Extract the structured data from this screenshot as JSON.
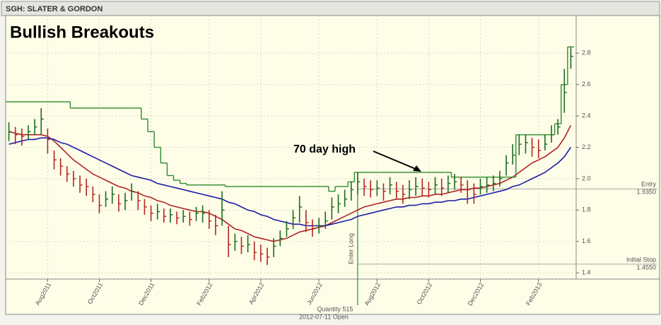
{
  "header": {
    "ticker": "SGH: SLATER & GORDON"
  },
  "chart_data": {
    "type": "ohlc",
    "title": "Bullish Breakouts",
    "categories": [
      null,
      null,
      null,
      null,
      null,
      null,
      "Aug2011",
      null,
      null,
      null,
      null,
      null,
      null,
      null,
      "Oct2011",
      null,
      null,
      null,
      null,
      null,
      null,
      null,
      "Dec2011",
      null,
      null,
      null,
      null,
      null,
      null,
      null,
      null,
      "Feb2012",
      null,
      null,
      null,
      null,
      null,
      null,
      null,
      "Apr2012",
      null,
      null,
      null,
      null,
      null,
      null,
      null,
      null,
      "Jun2012",
      null,
      null,
      null,
      null,
      null,
      null,
      null,
      null,
      "Aug2012",
      null,
      null,
      null,
      null,
      null,
      null,
      null,
      "Oct2012",
      null,
      null,
      null,
      null,
      null,
      null,
      null,
      "Dec2012",
      null,
      null,
      null,
      null,
      null,
      null,
      null,
      null,
      "Feb2013",
      null,
      null,
      null,
      null,
      null
    ],
    "high": [
      2.36,
      2.33,
      2.32,
      2.34,
      2.38,
      2.45,
      2.32,
      2.18,
      2.13,
      2.08,
      2.05,
      2.02,
      2.0,
      1.95,
      1.9,
      1.92,
      1.95,
      1.9,
      1.91,
      1.97,
      1.92,
      1.87,
      1.83,
      1.84,
      1.81,
      1.81,
      1.79,
      1.8,
      1.79,
      1.82,
      1.83,
      1.8,
      1.77,
      1.92,
      1.7,
      1.65,
      1.63,
      1.64,
      1.6,
      1.58,
      1.56,
      1.62,
      1.67,
      1.73,
      1.8,
      1.89,
      1.8,
      1.74,
      1.75,
      1.79,
      1.88,
      1.9,
      1.93,
      1.98,
      2.04,
      2.0,
      1.99,
      1.99,
      1.97,
      2.01,
      1.98,
      1.96,
      1.99,
      2.01,
      2.0,
      1.98,
      2.01,
      2.0,
      2.02,
      2.03,
      2.01,
      1.99,
      1.97,
      2.0,
      2.01,
      2.02,
      2.05,
      2.15,
      2.22,
      2.28,
      2.28,
      2.26,
      2.25,
      2.28,
      2.34,
      2.38,
      2.7,
      2.84
    ],
    "low": [
      2.24,
      2.22,
      2.21,
      2.25,
      2.28,
      2.28,
      2.16,
      2.06,
      2.02,
      1.98,
      1.95,
      1.91,
      1.89,
      1.85,
      1.78,
      1.82,
      1.84,
      1.79,
      1.8,
      1.86,
      1.8,
      1.77,
      1.73,
      1.74,
      1.72,
      1.72,
      1.71,
      1.72,
      1.7,
      1.73,
      1.72,
      1.68,
      1.64,
      1.7,
      1.5,
      1.54,
      1.52,
      1.53,
      1.48,
      1.47,
      1.45,
      1.5,
      1.57,
      1.63,
      1.68,
      1.72,
      1.66,
      1.63,
      1.65,
      1.68,
      1.74,
      1.78,
      1.82,
      1.86,
      1.9,
      1.89,
      1.88,
      1.89,
      1.86,
      1.9,
      1.87,
      1.84,
      1.87,
      1.89,
      1.89,
      1.88,
      1.9,
      1.89,
      1.91,
      1.93,
      1.91,
      1.84,
      1.84,
      1.9,
      1.91,
      1.92,
      1.95,
      2.02,
      2.09,
      2.15,
      2.16,
      2.14,
      2.13,
      2.18,
      2.23,
      2.28,
      2.42,
      2.7
    ],
    "close": [
      2.3,
      2.28,
      2.27,
      2.3,
      2.33,
      2.38,
      2.25,
      2.12,
      2.08,
      2.03,
      2.0,
      1.96,
      1.95,
      1.9,
      1.83,
      1.87,
      1.9,
      1.84,
      1.86,
      1.92,
      1.86,
      1.82,
      1.78,
      1.79,
      1.76,
      1.77,
      1.75,
      1.76,
      1.74,
      1.78,
      1.78,
      1.73,
      1.7,
      1.8,
      1.58,
      1.6,
      1.57,
      1.58,
      1.53,
      1.52,
      1.5,
      1.57,
      1.62,
      1.68,
      1.75,
      1.82,
      1.72,
      1.68,
      1.7,
      1.73,
      1.82,
      1.84,
      1.87,
      1.93,
      1.98,
      1.95,
      1.93,
      1.94,
      1.92,
      1.96,
      1.92,
      1.9,
      1.93,
      1.95,
      1.94,
      1.93,
      1.96,
      1.94,
      1.97,
      1.98,
      1.96,
      1.93,
      1.9,
      1.95,
      1.96,
      1.97,
      2.0,
      2.1,
      2.15,
      2.22,
      2.23,
      2.2,
      2.18,
      2.22,
      2.28,
      2.33,
      2.55,
      2.78
    ],
    "up_color": "#1d6b1d",
    "down_color": "#b3261e",
    "series": [
      {
        "color": "#b22222",
        "values": [
          2.3,
          2.29,
          2.28,
          2.28,
          2.28,
          2.28,
          2.27,
          2.24,
          2.2,
          2.16,
          2.12,
          2.09,
          2.06,
          2.03,
          2.01,
          1.99,
          1.97,
          1.95,
          1.94,
          1.92,
          1.91,
          1.89,
          1.88,
          1.86,
          1.85,
          1.83,
          1.82,
          1.81,
          1.8,
          1.79,
          1.79,
          1.78,
          1.76,
          1.74,
          1.71,
          1.68,
          1.67,
          1.65,
          1.63,
          1.62,
          1.61,
          1.6,
          1.61,
          1.62,
          1.64,
          1.66,
          1.67,
          1.68,
          1.69,
          1.7,
          1.72,
          1.74,
          1.76,
          1.78,
          1.8,
          1.82,
          1.83,
          1.84,
          1.85,
          1.86,
          1.87,
          1.87,
          1.88,
          1.88,
          1.89,
          1.89,
          1.9,
          1.9,
          1.91,
          1.92,
          1.93,
          1.93,
          1.94,
          1.94,
          1.95,
          1.96,
          1.97,
          1.99,
          2.01,
          2.04,
          2.07,
          2.1,
          2.12,
          2.14,
          2.17,
          2.2,
          2.26,
          2.34
        ]
      },
      {
        "color": "#1c1ca8",
        "values": [
          2.22,
          2.23,
          2.24,
          2.25,
          2.25,
          2.26,
          2.26,
          2.25,
          2.23,
          2.22,
          2.2,
          2.18,
          2.16,
          2.14,
          2.12,
          2.1,
          2.08,
          2.06,
          2.04,
          2.02,
          2.01,
          2.0,
          1.99,
          1.97,
          1.96,
          1.95,
          1.94,
          1.93,
          1.92,
          1.91,
          1.9,
          1.89,
          1.88,
          1.87,
          1.85,
          1.84,
          1.82,
          1.8,
          1.79,
          1.77,
          1.76,
          1.74,
          1.73,
          1.72,
          1.71,
          1.71,
          1.7,
          1.7,
          1.7,
          1.7,
          1.71,
          1.72,
          1.73,
          1.74,
          1.76,
          1.77,
          1.78,
          1.79,
          1.8,
          1.81,
          1.82,
          1.82,
          1.83,
          1.83,
          1.84,
          1.84,
          1.85,
          1.85,
          1.86,
          1.86,
          1.87,
          1.87,
          1.88,
          1.89,
          1.9,
          1.91,
          1.92,
          1.93,
          1.95,
          1.96,
          1.98,
          2.0,
          2.02,
          2.04,
          2.07,
          2.1,
          2.14,
          2.2
        ]
      },
      {
        "color": "#2e8b2e",
        "style": "step",
        "values": [
          2.49,
          2.49,
          2.49,
          2.49,
          2.49,
          2.49,
          2.49,
          2.49,
          2.49,
          2.49,
          2.45,
          2.45,
          2.45,
          2.45,
          2.45,
          2.45,
          2.45,
          2.45,
          2.45,
          2.45,
          2.45,
          2.38,
          2.3,
          2.2,
          2.1,
          2.02,
          1.99,
          1.97,
          1.96,
          1.96,
          1.96,
          1.96,
          1.96,
          1.96,
          1.95,
          1.95,
          1.95,
          1.95,
          1.95,
          1.95,
          1.95,
          1.95,
          1.95,
          1.95,
          1.95,
          1.95,
          1.95,
          1.95,
          1.95,
          1.95,
          1.92,
          1.95,
          1.95,
          1.98,
          2.04,
          2.04,
          2.04,
          2.04,
          2.04,
          2.04,
          2.04,
          2.04,
          2.04,
          2.04,
          2.04,
          2.04,
          2.04,
          2.04,
          2.04,
          2.01,
          2.01,
          2.01,
          2.01,
          2.01,
          2.01,
          2.01,
          2.01,
          2.01,
          2.01,
          2.28,
          2.28,
          2.28,
          2.28,
          2.28,
          2.28,
          2.35,
          2.6,
          2.84
        ]
      }
    ],
    "ylim": [
      1.36,
      3.04
    ],
    "yticks": [
      1.4,
      1.6,
      1.8,
      {
        "value": 2,
        "label": "2.0"
      },
      2.2,
      2.4,
      2.6,
      2.8
    ],
    "grid": true,
    "levels": [
      {
        "label": "Entry",
        "value": 1.935,
        "value_label": "1.9350"
      },
      {
        "label": "Initial Stop",
        "value": 1.455,
        "value_label": "1.4550"
      }
    ],
    "trade": {
      "label": "Enter Long",
      "quantity": "Quantity 515",
      "date": "2012-07-11 Open"
    },
    "annotation": {
      "text": "70 day high"
    }
  }
}
